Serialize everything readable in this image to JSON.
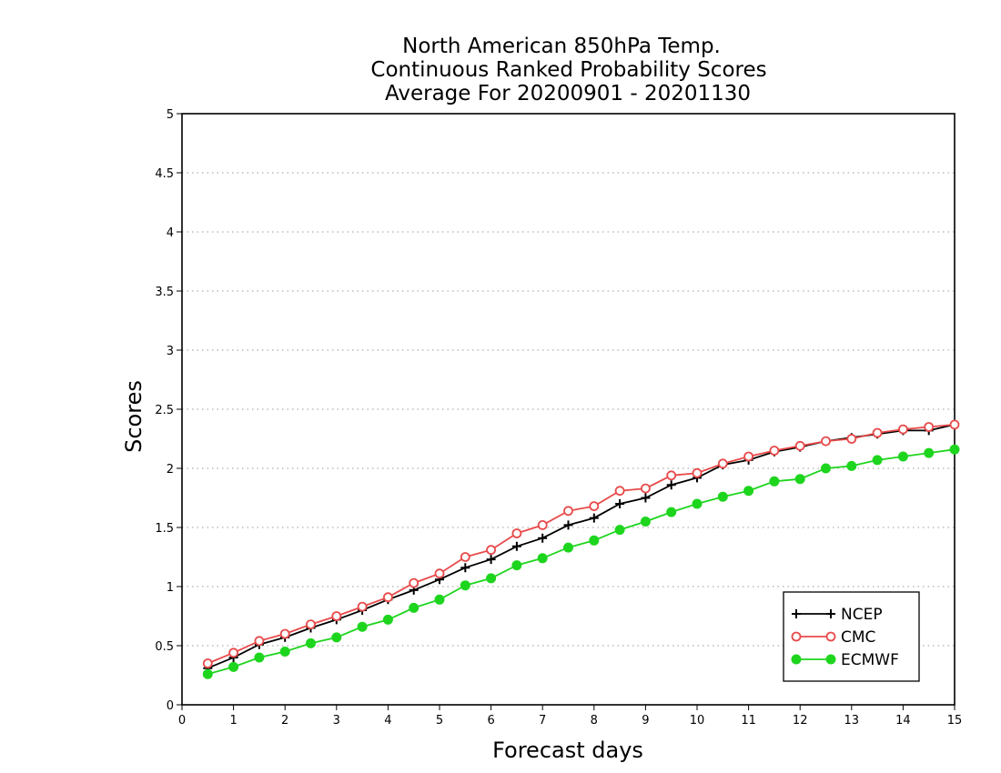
{
  "chart_data": {
    "type": "line",
    "title": [
      "North American 850hPa Temp.",
      "Continuous Ranked Probability Scores",
      "Average For 20200901 - 20201130"
    ],
    "xlabel": "Forecast days",
    "ylabel": "Scores",
    "xlim": [
      0,
      15
    ],
    "ylim": [
      0,
      5
    ],
    "xticks": [
      "0",
      "1",
      "2",
      "3",
      "4",
      "5",
      "6",
      "7",
      "8",
      "9",
      "10",
      "11",
      "12",
      "13",
      "14",
      "15"
    ],
    "yticks": [
      "0",
      "0.5",
      "1",
      "1.5",
      "2",
      "2.5",
      "3",
      "3.5",
      "4",
      "4.5",
      "5"
    ],
    "grid": true,
    "legend_position": "bottom-right",
    "x": [
      0.5,
      1,
      1.5,
      2,
      2.5,
      3,
      3.5,
      4,
      4.5,
      5,
      5.5,
      6,
      6.5,
      7,
      7.5,
      8,
      8.5,
      9,
      9.5,
      10,
      10.5,
      11,
      11.5,
      12,
      12.5,
      13,
      13.5,
      14,
      14.5,
      15
    ],
    "series": [
      {
        "name": "NCEP",
        "color": "#000000",
        "marker": "plus",
        "values": [
          0.31,
          0.4,
          0.51,
          0.57,
          0.65,
          0.72,
          0.8,
          0.89,
          0.97,
          1.06,
          1.16,
          1.23,
          1.34,
          1.41,
          1.52,
          1.58,
          1.7,
          1.75,
          1.86,
          1.92,
          2.03,
          2.07,
          2.14,
          2.18,
          2.23,
          2.26,
          2.29,
          2.32,
          2.32,
          2.37
        ]
      },
      {
        "name": "CMC",
        "color": "#e84a4a",
        "marker": "open-circle",
        "values": [
          0.35,
          0.44,
          0.54,
          0.6,
          0.68,
          0.75,
          0.83,
          0.91,
          1.03,
          1.11,
          1.25,
          1.31,
          1.45,
          1.52,
          1.64,
          1.68,
          1.81,
          1.83,
          1.94,
          1.96,
          2.04,
          2.1,
          2.15,
          2.19,
          2.23,
          2.25,
          2.3,
          2.33,
          2.35,
          2.37
        ]
      },
      {
        "name": "ECMWF",
        "color": "#1ed51e",
        "marker": "filled-circle",
        "values": [
          0.26,
          0.32,
          0.4,
          0.45,
          0.52,
          0.57,
          0.66,
          0.72,
          0.82,
          0.89,
          1.01,
          1.07,
          1.18,
          1.24,
          1.33,
          1.39,
          1.48,
          1.55,
          1.63,
          1.7,
          1.76,
          1.81,
          1.89,
          1.91,
          2.0,
          2.02,
          2.07,
          2.1,
          2.13,
          2.16
        ]
      }
    ]
  }
}
